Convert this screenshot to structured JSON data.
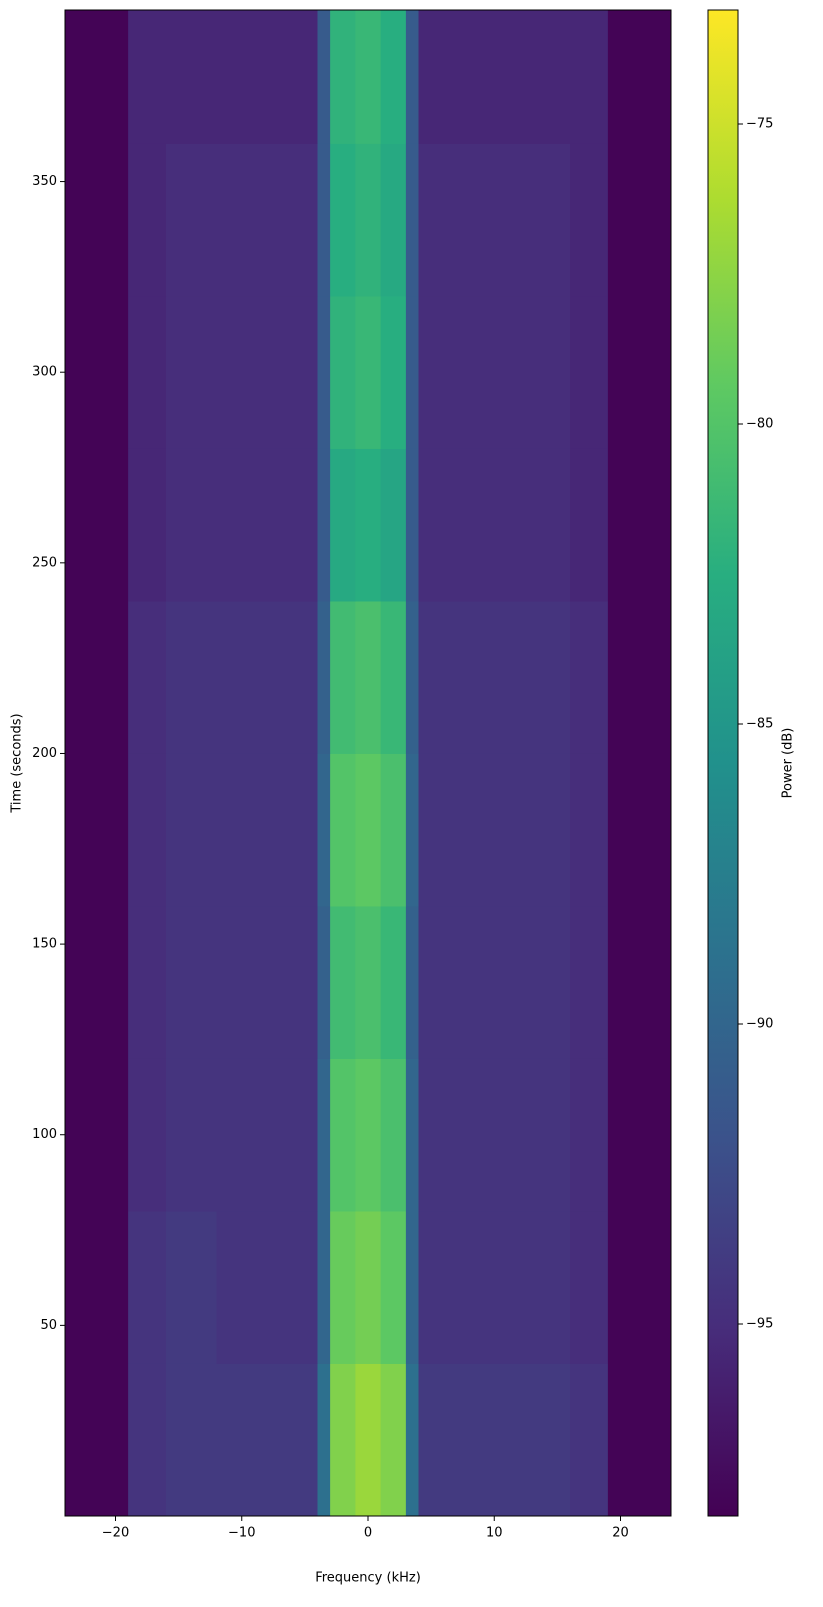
{
  "chart_data": {
    "type": "heatmap",
    "xlabel": "Frequency (kHz)",
    "ylabel": "Time (seconds)",
    "colorbar_label": "Power (dB)",
    "xlim": [
      -24,
      24
    ],
    "ylim": [
      0,
      395
    ],
    "xticks": [
      {
        "value": -20,
        "label": "−20"
      },
      {
        "value": -10,
        "label": "−10"
      },
      0,
      10,
      20
    ],
    "yticks": [
      50,
      100,
      150,
      200,
      250,
      300,
      350
    ],
    "clim": [
      -98.2,
      -73.1
    ],
    "colorbar_ticks": [
      {
        "value": -95,
        "label": "−95"
      },
      {
        "value": -90,
        "label": "−90"
      },
      {
        "value": -85,
        "label": "−85"
      },
      {
        "value": -80,
        "label": "−80"
      },
      {
        "value": -75,
        "label": "−75"
      }
    ],
    "colormap": "viridis",
    "x_edges": [
      -24,
      -19,
      -16,
      -12,
      -8,
      -4,
      -3,
      -1,
      1,
      3,
      4,
      8,
      12,
      16,
      19,
      24
    ],
    "y_edges": [
      0,
      40,
      80,
      120,
      160,
      200,
      240,
      280,
      320,
      360,
      395
    ],
    "z": [
      [
        -98,
        -94.5,
        -94,
        -94,
        -94,
        -89,
        -78,
        -77,
        -78,
        -89,
        -94,
        -94,
        -94,
        -94.5,
        -98
      ],
      [
        -98,
        -94.5,
        -94,
        -94.5,
        -94.5,
        -90,
        -79,
        -78.5,
        -79.5,
        -90,
        -94.5,
        -94.5,
        -94.5,
        -95,
        -98
      ],
      [
        -98,
        -95,
        -94.5,
        -94.5,
        -94.5,
        -90,
        -80,
        -79.5,
        -80.5,
        -90,
        -94.5,
        -94.5,
        -94.5,
        -95,
        -98
      ],
      [
        -98,
        -95,
        -94.5,
        -94.5,
        -94.5,
        -90.5,
        -81,
        -80.5,
        -81.5,
        -90.5,
        -94.5,
        -94.5,
        -94.5,
        -95,
        -98
      ],
      [
        -98,
        -95,
        -94.5,
        -94.5,
        -94.5,
        -90,
        -80,
        -79.5,
        -80.5,
        -90,
        -94.5,
        -94.5,
        -94.5,
        -95,
        -98
      ],
      [
        -98,
        -95,
        -94.5,
        -94.5,
        -94.5,
        -90.5,
        -81,
        -80.5,
        -81.5,
        -90.5,
        -94.5,
        -94.5,
        -94.5,
        -95,
        -98
      ],
      [
        -98,
        -95.5,
        -95,
        -95,
        -95,
        -91,
        -83,
        -82.5,
        -83.5,
        -91,
        -95,
        -95,
        -95,
        -95.5,
        -98
      ],
      [
        -98,
        -95.5,
        -95,
        -95,
        -95,
        -91,
        -82,
        -81.5,
        -82.5,
        -91,
        -95,
        -95,
        -95,
        -95.5,
        -98
      ],
      [
        -98,
        -95.5,
        -95,
        -95,
        -95,
        -91,
        -82.5,
        -82,
        -83,
        -91,
        -95,
        -95,
        -95,
        -95.5,
        -98
      ],
      [
        -98,
        -95.5,
        -95.5,
        -95.5,
        -95.5,
        -91,
        -82,
        -81.5,
        -82.5,
        -91,
        -95.5,
        -95.5,
        -95.5,
        -95.5,
        -98
      ]
    ]
  }
}
